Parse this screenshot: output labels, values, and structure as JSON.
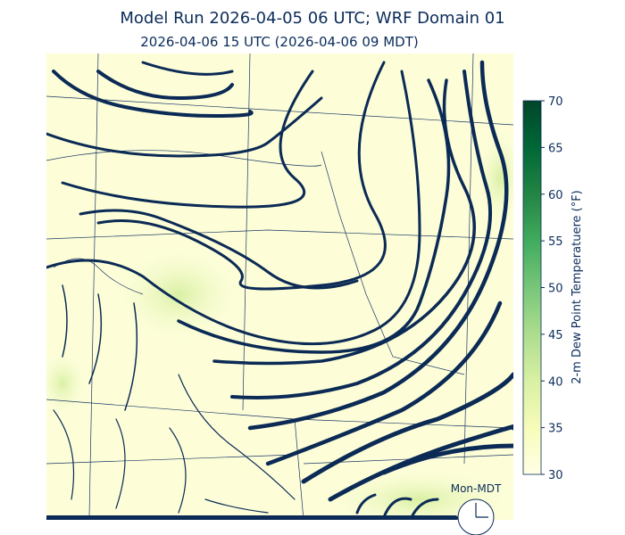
{
  "header": {
    "title": "Model Run 2026-04-05 06 UTC; WRF Domain 01",
    "subtitle": "2026-04-06 15 UTC  (2026-04-06 09 MDT)"
  },
  "colorbar": {
    "label": "2-m Dew Point Temperatuere (°F)",
    "lim": [
      30,
      70
    ],
    "ticks": [
      30,
      35,
      40,
      45,
      50,
      55,
      60,
      65,
      70
    ],
    "colors": [
      "#ffffe5",
      "#f7fcb9",
      "#d9f0a3",
      "#addd8e",
      "#78c679",
      "#41ab5d",
      "#238443",
      "#006837",
      "#004529"
    ]
  },
  "clock": {
    "label": "Mon-MDT"
  }
}
